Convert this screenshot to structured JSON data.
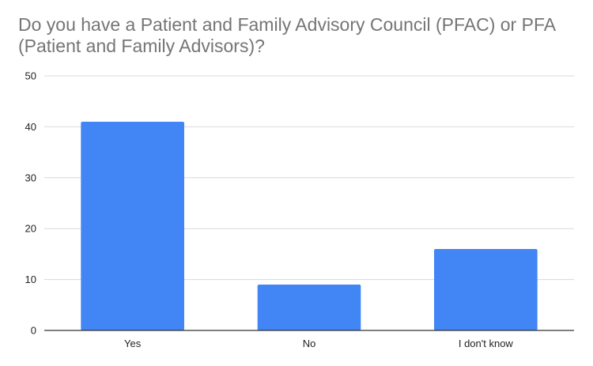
{
  "chart_data": {
    "type": "bar",
    "title": "Do you have a Patient and Family Advisory Council (PFAC) or PFA (Patient and Family Advisors)?",
    "categories": [
      "Yes",
      "No",
      "I don't know"
    ],
    "values": [
      41,
      9,
      16
    ],
    "xlabel": "",
    "ylabel": "",
    "ylim": [
      0,
      50
    ],
    "yticks": [
      0,
      10,
      20,
      30,
      40,
      50
    ],
    "grid": true,
    "legend": "none",
    "bar_color": "#4285f4"
  }
}
